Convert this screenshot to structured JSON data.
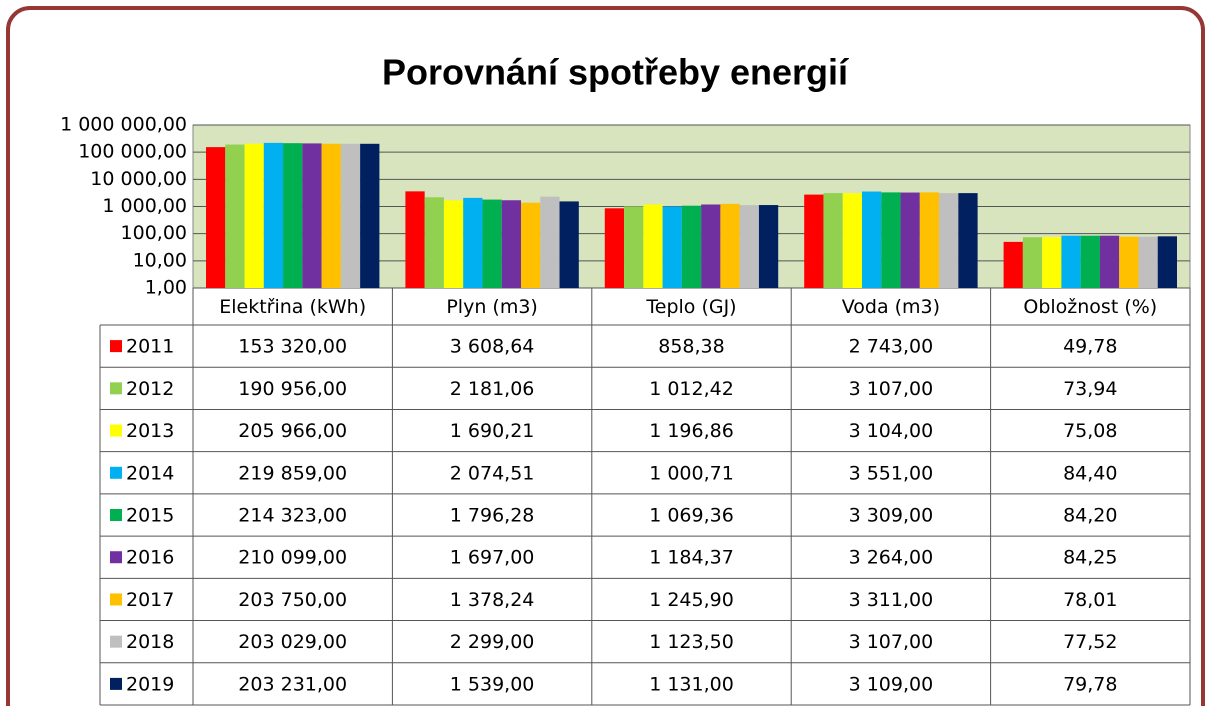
{
  "chart_data": {
    "type": "bar",
    "title": "Porovnání spotřeby energií",
    "log_scale": true,
    "grid": true,
    "plot_background": "#d7e4bd",
    "categories": [
      "Elektřina (kWh)",
      "Plyn (m3)",
      "Teplo (GJ)",
      "Voda (m3)",
      "Obložnost (%)"
    ],
    "ylim": [
      1,
      1000000
    ],
    "yticks": [
      {
        "value": 1,
        "label": "1,00"
      },
      {
        "value": 10,
        "label": "10,00"
      },
      {
        "value": 100,
        "label": "100,00"
      },
      {
        "value": 1000,
        "label": "1 000,00"
      },
      {
        "value": 10000,
        "label": "10 000,00"
      },
      {
        "value": 100000,
        "label": "100 000,00"
      },
      {
        "value": 1000000,
        "label": "1 000 000,00"
      }
    ],
    "series": [
      {
        "name": "2011",
        "color": "#ff0000",
        "values": [
          153320,
          3608.64,
          858.38,
          2743,
          49.78
        ],
        "value_labels": [
          "153 320,00",
          "3 608,64",
          "858,38",
          "2 743,00",
          "49,78"
        ]
      },
      {
        "name": "2012",
        "color": "#92d050",
        "values": [
          190956,
          2181.06,
          1012.42,
          3107,
          73.94
        ],
        "value_labels": [
          "190 956,00",
          "2 181,06",
          "1 012,42",
          "3 107,00",
          "73,94"
        ]
      },
      {
        "name": "2013",
        "color": "#ffff00",
        "values": [
          205966,
          1690.21,
          1196.86,
          3104,
          75.08
        ],
        "value_labels": [
          "205 966,00",
          "1 690,21",
          "1 196,86",
          "3 104,00",
          "75,08"
        ]
      },
      {
        "name": "2014",
        "color": "#00b0f0",
        "values": [
          219859,
          2074.51,
          1000.71,
          3551,
          84.4
        ],
        "value_labels": [
          "219 859,00",
          "2 074,51",
          "1 000,71",
          "3 551,00",
          "84,40"
        ]
      },
      {
        "name": "2015",
        "color": "#00b050",
        "values": [
          214323,
          1796.28,
          1069.36,
          3309,
          84.2
        ],
        "value_labels": [
          "214 323,00",
          "1 796,28",
          "1 069,36",
          "3 309,00",
          "84,20"
        ]
      },
      {
        "name": "2016",
        "color": "#7030a0",
        "values": [
          210099,
          1697,
          1184.37,
          3264,
          84.25
        ],
        "value_labels": [
          "210 099,00",
          "1 697,00",
          "1 184,37",
          "3 264,00",
          "84,25"
        ]
      },
      {
        "name": "2017",
        "color": "#ffc000",
        "values": [
          203750,
          1378.24,
          1245.9,
          3311,
          78.01
        ],
        "value_labels": [
          "203 750,00",
          "1 378,24",
          "1 245,90",
          "3 311,00",
          "78,01"
        ]
      },
      {
        "name": "2018",
        "color": "#bfbfbf",
        "values": [
          203029,
          2299,
          1123.5,
          3107,
          77.52
        ],
        "value_labels": [
          "203 029,00",
          "2 299,00",
          "1 123,50",
          "3 107,00",
          "77,52"
        ]
      },
      {
        "name": "2019",
        "color": "#002060",
        "values": [
          203231,
          1539,
          1131,
          3109,
          79.78
        ],
        "value_labels": [
          "203 231,00",
          "1 539,00",
          "1 131,00",
          "3 109,00",
          "79,78"
        ]
      }
    ]
  }
}
